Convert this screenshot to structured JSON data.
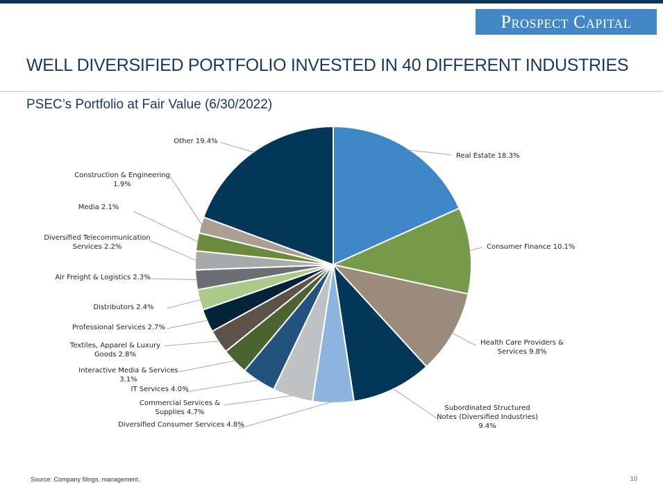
{
  "header": {
    "logo_text": "Prospect Capital",
    "title": "WELL DIVERSIFIED PORTFOLIO INVESTED IN 40 DIFFERENT INDUSTRIES",
    "subtitle": "PSEC’s Portfolio at Fair Value (6/30/2022)"
  },
  "footer": {
    "source": "Source: Company filings, management.",
    "page_number": "10"
  },
  "colors": {
    "brand_navy": "#0f3556",
    "logo_blue": "#4487c7",
    "title_blue": "#17375e"
  },
  "chart_data": {
    "type": "pie",
    "title": "PSEC’s Portfolio at Fair Value (6/30/2022)",
    "unit": "%",
    "start": "12 o'clock, clockwise",
    "slices": [
      {
        "name": "Real Estate",
        "value": 18.3,
        "label_lines": [
          "Real Estate 18.3%"
        ],
        "color": "#3f86c7"
      },
      {
        "name": "Consumer Finance",
        "value": 10.1,
        "label_lines": [
          "Consumer Finance 10.1%"
        ],
        "color": "#77994a"
      },
      {
        "name": "Health Care Providers & Services",
        "value": 9.8,
        "label_lines": [
          "Health Care Providers &",
          "Services 9.8%"
        ],
        "color": "#9a8b7c"
      },
      {
        "name": "Subordinated Structured Notes (Diversified Industries)",
        "value": 9.4,
        "label_lines": [
          "Subordinated Structured",
          "Notes (Diversified Industries)",
          "9.4%"
        ],
        "color": "#03375a"
      },
      {
        "name": "Diversified Consumer Services",
        "value": 4.8,
        "label_lines": [
          "Diversified Consumer Services 4.8%"
        ],
        "color": "#8db4df"
      },
      {
        "name": "Commercial Services & Supplies",
        "value": 4.7,
        "label_lines": [
          "Commercial Services &",
          "Supplies 4.7%"
        ],
        "color": "#c0c1c3"
      },
      {
        "name": "IT Services",
        "value": 4.0,
        "label_lines": [
          "IT Services 4.0%"
        ],
        "color": "#24527f"
      },
      {
        "name": "Interactive Media & Services",
        "value": 3.1,
        "label_lines": [
          "Interactive Media & Services",
          "3.1%"
        ],
        "color": "#4a6330"
      },
      {
        "name": "Textiles, Apparel & Luxury Goods",
        "value": 2.8,
        "label_lines": [
          "Textiles, Apparel & Luxury",
          "Goods 2.8%"
        ],
        "color": "#5c5248"
      },
      {
        "name": "Professional Services",
        "value": 2.7,
        "label_lines": [
          "Professional Services 2.7%"
        ],
        "color": "#03233a"
      },
      {
        "name": "Distributors",
        "value": 2.4,
        "label_lines": [
          "Distributors 2.4%"
        ],
        "color": "#aac98b"
      },
      {
        "name": "Air Freight & Logistics",
        "value": 2.3,
        "label_lines": [
          "Air Freight & Logistics 2.3%"
        ],
        "color": "#6b6e72"
      },
      {
        "name": "Diversified Telecommunication Services",
        "value": 2.2,
        "label_lines": [
          "Diversified Telecommunication",
          "Services 2.2%"
        ],
        "color": "#a8a9ab"
      },
      {
        "name": "Media",
        "value": 2.1,
        "label_lines": [
          "Media 2.1%"
        ],
        "color": "#6a8a3d"
      },
      {
        "name": "Construction & Engineering",
        "value": 1.9,
        "label_lines": [
          "Construction & Engineering",
          "1.9%"
        ],
        "color": "#ab9f93"
      },
      {
        "name": "Other",
        "value": 19.4,
        "label_lines": [
          "Other 19.4%"
        ],
        "color": "#03375a"
      }
    ]
  }
}
